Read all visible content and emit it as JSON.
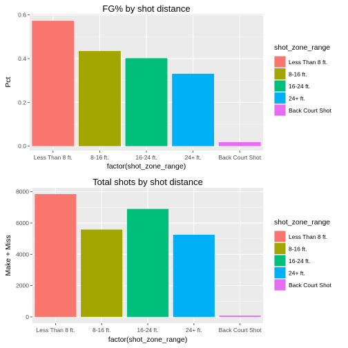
{
  "chart_data": [
    {
      "type": "bar",
      "title": "FG% by shot distance",
      "xlabel": "factor(shot_zone_range)",
      "ylabel": "Pct",
      "categories": [
        "Less Than 8 ft.",
        "8-16 ft.",
        "16-24 ft.",
        "24+ ft.",
        "Back Court Shot"
      ],
      "values": [
        0.573,
        0.435,
        0.402,
        0.331,
        0.018
      ],
      "ylim": [
        -0.02,
        0.605
      ],
      "yticks": [
        0.0,
        0.2,
        0.4,
        0.6
      ],
      "ytick_labels": [
        "0.0",
        "0.2",
        "0.4",
        "0.6"
      ],
      "colors": [
        "#F8766D",
        "#A3A500",
        "#00BF7D",
        "#00B0F6",
        "#E76BF3"
      ],
      "grid": true,
      "legend": {
        "title": "shot_zone_range",
        "position": "right",
        "entries": [
          "Less Than 8 ft.",
          "8-16 ft.",
          "16-24 ft.",
          "24+ ft.",
          "Back Court Shot"
        ]
      }
    },
    {
      "type": "bar",
      "title": "Total shots by shot distance",
      "xlabel": "factor(shot_zone_range)",
      "ylabel": "Make + Miss",
      "categories": [
        "Less Than 8 ft.",
        "8-16 ft.",
        "16-24 ft.",
        "24+ ft.",
        "Back Court Shot"
      ],
      "values": [
        7850,
        5580,
        6900,
        5250,
        83
      ],
      "ylim": [
        -400,
        8250
      ],
      "yticks": [
        0,
        2000,
        4000,
        6000,
        8000
      ],
      "ytick_labels": [
        "0",
        "2000",
        "4000",
        "6000",
        "8000"
      ],
      "colors": [
        "#F8766D",
        "#A3A500",
        "#00BF7D",
        "#00B0F6",
        "#E76BF3"
      ],
      "grid": true,
      "legend": {
        "title": "shot_zone_range",
        "position": "right",
        "entries": [
          "Less Than 8 ft.",
          "8-16 ft.",
          "16-24 ft.",
          "24+ ft.",
          "Back Court Shot"
        ]
      }
    }
  ]
}
